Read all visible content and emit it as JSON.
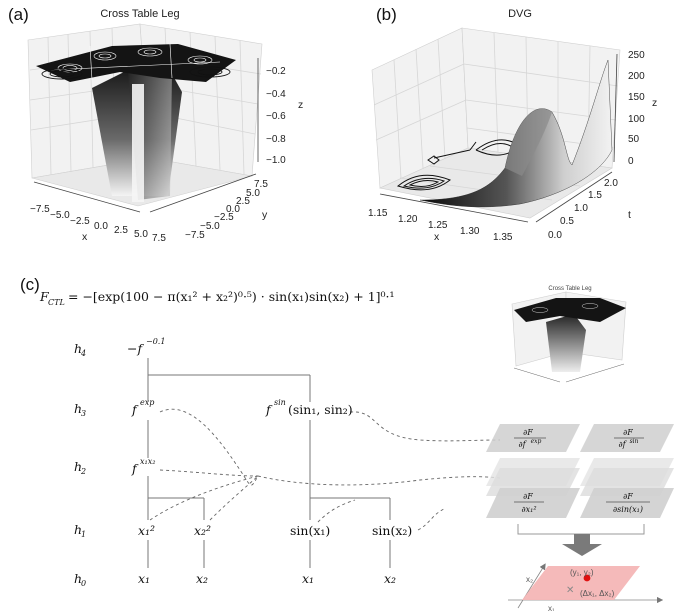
{
  "panel_a": {
    "letter": "(a)",
    "title": "Cross Table Leg",
    "x_label": "x",
    "y_label": "y",
    "z_label": "z",
    "x_ticks": [
      "−7.5",
      "−5.0",
      "−2.5",
      "0.0",
      "2.5",
      "5.0",
      "7.5"
    ],
    "y_ticks": [
      "−7.5",
      "−5.0",
      "−2.5",
      "0.0",
      "2.5",
      "5.0",
      "7.5"
    ],
    "z_ticks": [
      "−0.2",
      "−0.4",
      "−0.6",
      "−0.8",
      "−1.0"
    ]
  },
  "panel_b": {
    "letter": "(b)",
    "title": "DVG",
    "x_label": "x",
    "t_label": "t",
    "z_label": "z",
    "x_ticks": [
      "1.15",
      "1.20",
      "1.25",
      "1.30",
      "1.35"
    ],
    "t_ticks": [
      "0.0",
      "0.5",
      "1.0",
      "1.5",
      "2.0"
    ],
    "z_ticks": [
      "250",
      "200",
      "150",
      "100",
      "50",
      "0"
    ]
  },
  "panel_c": {
    "letter": "(c)",
    "formula_lhs": "F",
    "formula_lhs_sub": "CTL",
    "formula_rhs": "= −[exp(100 − π(x₁² + x₂²)⁰·⁵) · sin(x₁)sin(x₂) + 1]⁰·¹",
    "thumbnail_title": "Cross Table Leg",
    "level_labels": [
      {
        "h": "h",
        "sub": "4"
      },
      {
        "h": "h",
        "sub": "3"
      },
      {
        "h": "h",
        "sub": "2"
      },
      {
        "h": "h",
        "sub": "1"
      },
      {
        "h": "h",
        "sub": "0"
      }
    ],
    "nodes": {
      "neg_pow": "−f",
      "neg_pow_sup": "−0.1",
      "f_exp": "f",
      "f_exp_sup": "exp",
      "f_x1x2": "f",
      "f_x1x2_sup": "x₁x₂",
      "f_sin": "f",
      "f_sin_sup": "sin",
      "f_sin_args": "(sin₁, sin₂)",
      "x1_sq": "x₁²",
      "x2_sq": "x₂²",
      "sin_x1": "sin(x₁)",
      "sin_x2": "sin(x₂)",
      "x1_left": "x₁",
      "x2_left": "x₂",
      "x1_right": "x₁",
      "x2_right": "x₂"
    },
    "gradient_labels": {
      "dF_dfexp_num": "∂F",
      "dF_dfexp_den": "∂f",
      "dF_dfexp_den_sup": "exp",
      "dF_dfsin_num": "∂F",
      "dF_dfsin_den": "∂f",
      "dF_dfsin_den_sup": "sin",
      "dF_dx1sq_num": "∂F",
      "dF_dx1sq_den": "∂x₁²",
      "dF_dsin_num": "∂F",
      "dF_dsin_den": "∂sin(x₁)"
    },
    "update_plane": {
      "y_label": "(y₁, y₂)",
      "delta_label": "(Δx₁, Δx₂)",
      "axis1": "x₁",
      "axis2": "x₂"
    },
    "colors": {
      "plane_fill": "#f4b6b6",
      "point": "#e01010",
      "arrow": "#7a7a7a",
      "gradient_plane": "#d0d0d0"
    }
  }
}
